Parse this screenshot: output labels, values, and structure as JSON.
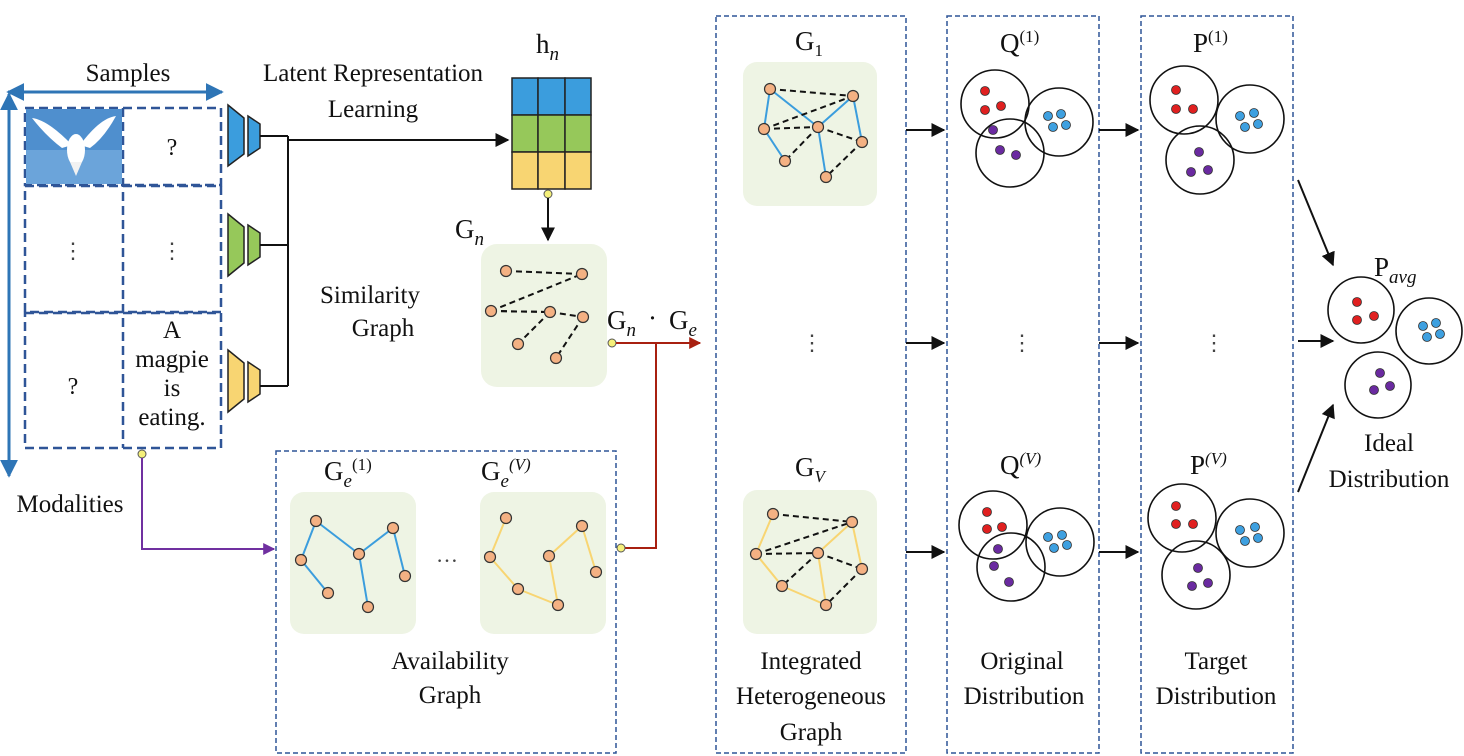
{
  "labels": {
    "samples": "Samples",
    "modalities": "Modalities",
    "latent_line1": "Latent Representation",
    "latent_line2": "Learning",
    "similarity_line1": "Similarity",
    "similarity_line2": "Graph",
    "availability_line1": "Availability",
    "availability_line2": "Graph",
    "integrated_line1": "Integrated",
    "integrated_line2": "Heterogeneous",
    "integrated_line3": "Graph",
    "original_line1": "Original",
    "original_line2": "Distribution",
    "target_line1": "Target",
    "target_line2": "Distribution",
    "ideal_line1": "Ideal",
    "ideal_line2": "Distribution"
  },
  "symbols": {
    "h_base": "h",
    "h_sub": "n",
    "gn_base": "G",
    "gn_sub": "n",
    "product_g1": "G",
    "product_n": "n",
    "product_dot": "·",
    "product_g2": "G",
    "product_e": "e",
    "ge1_base": "G",
    "ge1_sub": "e",
    "ge1_sup": "(1)",
    "gev_base": "G",
    "gev_sub": "e",
    "gev_sup": "(V)",
    "g1_base": "G",
    "g1_sub": "1",
    "gv_base": "G",
    "gv_sub": "V",
    "q1_base": "Q",
    "q1_sup": "(1)",
    "qv_base": "Q",
    "qv_sup": "(V)",
    "p1_base": "P",
    "p1_sup": "(1)",
    "pv_base": "P",
    "pv_sup": "(V)",
    "pavg_base": "P",
    "pavg_sub": "avg"
  },
  "sample_cells": {
    "row1_text": "?",
    "row2_img": "⋮",
    "row2_text": "⋮",
    "row3_img": "?",
    "caption_line1": "A",
    "caption_line2": "magpie",
    "caption_line3": "is",
    "caption_line4": "eating."
  },
  "ellipses": {
    "availability": "…",
    "integrated": "⋮",
    "original": "⋮",
    "target": "⋮"
  },
  "colors": {
    "blue": "#3b9ddd",
    "green": "#96c85a",
    "yellow": "#f8d572",
    "node": "#f4b183",
    "panel": "#eef4e4",
    "dashed_box": "#2f5597",
    "red_dot": "#e02020",
    "blue_dot": "#3ea0e0",
    "purple_dot": "#6a2aa0",
    "arrow_red": "#a82010",
    "arrow_purple": "#7030a0",
    "axis_blue": "#2e75b6"
  }
}
